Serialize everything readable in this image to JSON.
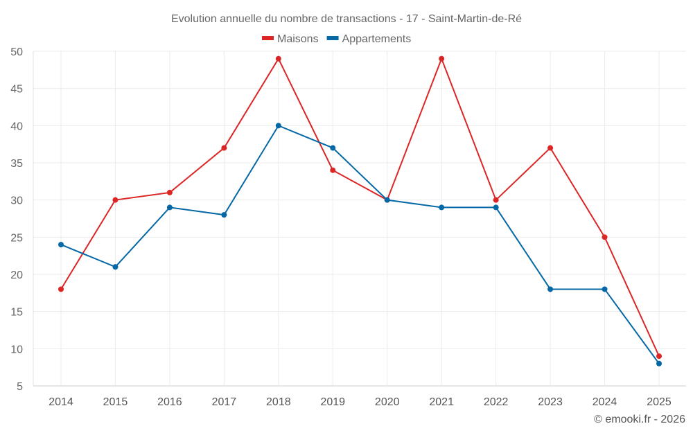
{
  "chart_data": {
    "type": "line",
    "title": "Evolution annuelle du nombre de transactions - 17 - Saint-Martin-de-Ré",
    "categories": [
      "2014",
      "2015",
      "2016",
      "2017",
      "2018",
      "2019",
      "2020",
      "2021",
      "2022",
      "2023",
      "2024",
      "2025"
    ],
    "series": [
      {
        "name": "Maisons",
        "color": "#dc2626",
        "values": [
          18,
          30,
          31,
          37,
          49,
          34,
          30,
          49,
          30,
          37,
          25,
          9
        ]
      },
      {
        "name": "Appartements",
        "color": "#0568a6",
        "values": [
          24,
          21,
          29,
          28,
          40,
          37,
          30,
          29,
          29,
          18,
          18,
          8
        ]
      }
    ],
    "ylim": [
      5,
      50
    ],
    "yticks": [
      5,
      10,
      15,
      20,
      25,
      30,
      35,
      40,
      45,
      50
    ],
    "grid": true,
    "legend": "top-center",
    "xlabel": "",
    "ylabel": ""
  },
  "credit": "© emooki.fr - 2026"
}
